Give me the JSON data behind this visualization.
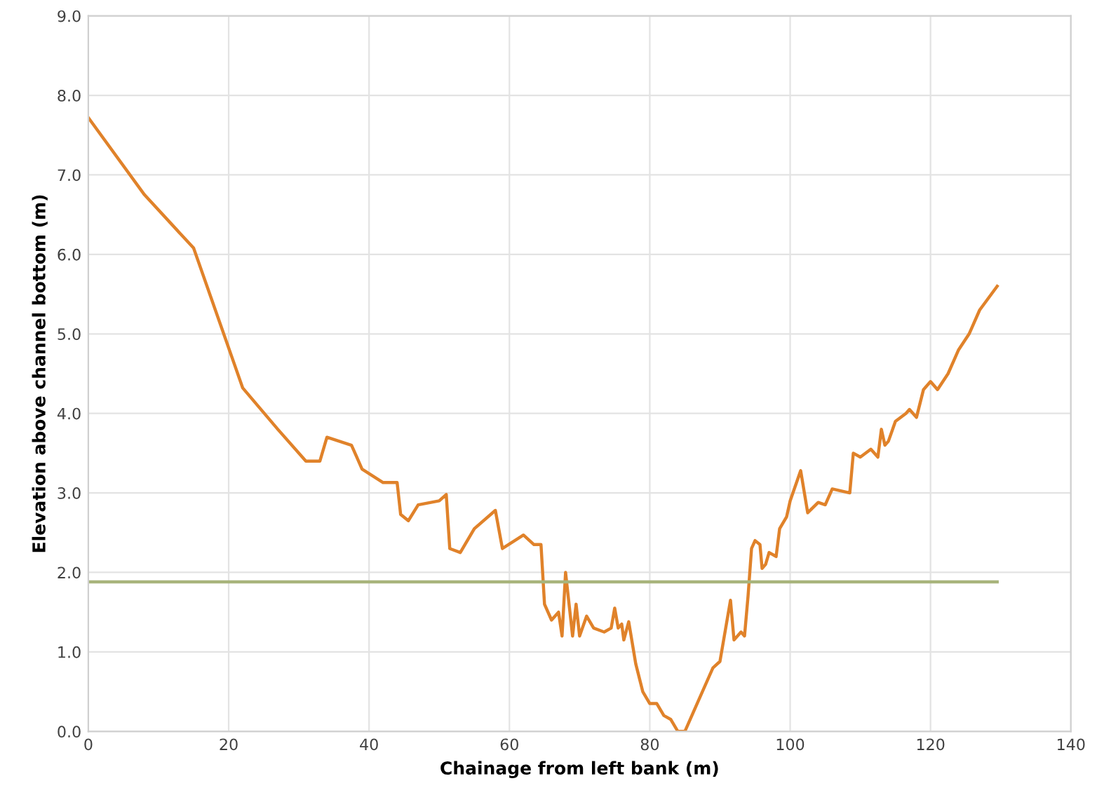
{
  "chart_data": {
    "type": "line",
    "xlabel": "Chainage from left bank (m)",
    "ylabel": "Elevation above channel bottom (m)",
    "xlim": [
      0,
      140
    ],
    "xticks": [
      0,
      20,
      40,
      60,
      80,
      100,
      120,
      140
    ],
    "ylim": [
      0,
      9
    ],
    "yticks": [
      {
        "value": 0,
        "label": "0.0"
      },
      {
        "value": 1,
        "label": "1.0"
      },
      {
        "value": 2,
        "label": "2.0"
      },
      {
        "value": 3,
        "label": "3.0"
      },
      {
        "value": 4,
        "label": "4.0"
      },
      {
        "value": 5,
        "label": "5.0"
      },
      {
        "value": 6,
        "label": "6.0"
      },
      {
        "value": 7,
        "label": "7.0"
      },
      {
        "value": 8,
        "label": "8.0"
      },
      {
        "value": 9,
        "label": "9.0"
      }
    ],
    "grid": true,
    "legend": false,
    "marker": "none",
    "line_style": "solid",
    "series": [
      {
        "color": "#e0822a",
        "x": [
          0,
          8,
          15,
          22,
          27,
          31,
          33,
          34,
          37.5,
          39,
          42,
          44,
          44.5,
          45.6,
          47,
          50,
          51,
          51.5,
          53,
          55,
          58,
          59,
          62,
          63.5,
          64.5,
          65,
          66,
          67,
          67.5,
          68,
          69,
          69.5,
          70,
          71,
          72,
          73.5,
          74.5,
          75,
          75.5,
          76,
          76.3,
          77,
          78,
          79,
          80,
          81,
          82,
          83,
          84,
          85,
          87,
          89,
          90,
          91.5,
          92,
          93,
          93.5,
          94,
          94.5,
          95,
          95.7,
          96,
          96.5,
          97,
          98,
          98.5,
          99.5,
          100,
          101.5,
          102.5,
          104,
          105,
          106,
          108.5,
          109,
          110,
          111.5,
          112.5,
          113,
          113.5,
          114,
          115,
          116.5,
          117,
          118,
          119,
          120,
          121,
          122.5,
          124,
          125.5,
          127,
          129.5
        ],
        "values": [
          7.72,
          6.75,
          6.08,
          4.32,
          3.8,
          3.4,
          3.4,
          3.7,
          3.6,
          3.3,
          3.13,
          3.13,
          2.73,
          2.65,
          2.85,
          2.9,
          2.98,
          2.3,
          2.25,
          2.55,
          2.78,
          2.3,
          2.47,
          2.35,
          2.35,
          1.6,
          1.4,
          1.5,
          1.2,
          2.0,
          1.2,
          1.6,
          1.2,
          1.45,
          1.3,
          1.25,
          1.3,
          1.55,
          1.3,
          1.35,
          1.15,
          1.38,
          0.85,
          0.5,
          0.35,
          0.35,
          0.2,
          0.15,
          0,
          0,
          0.4,
          0.8,
          0.88,
          1.65,
          1.15,
          1.25,
          1.2,
          1.7,
          2.3,
          2.4,
          2.35,
          2.05,
          2.1,
          2.25,
          2.2,
          2.55,
          2.7,
          2.9,
          3.28,
          2.75,
          2.88,
          2.85,
          3.05,
          3.0,
          3.5,
          3.45,
          3.55,
          3.45,
          3.8,
          3.6,
          3.65,
          3.9,
          4.0,
          4.05,
          3.95,
          4.3,
          4.4,
          4.3,
          4.5,
          4.8,
          5.0,
          5.3,
          5.6
        ]
      },
      {
        "color": "#a8b47c",
        "x": [
          0,
          129.5
        ],
        "values": [
          1.88,
          1.88
        ]
      }
    ]
  }
}
